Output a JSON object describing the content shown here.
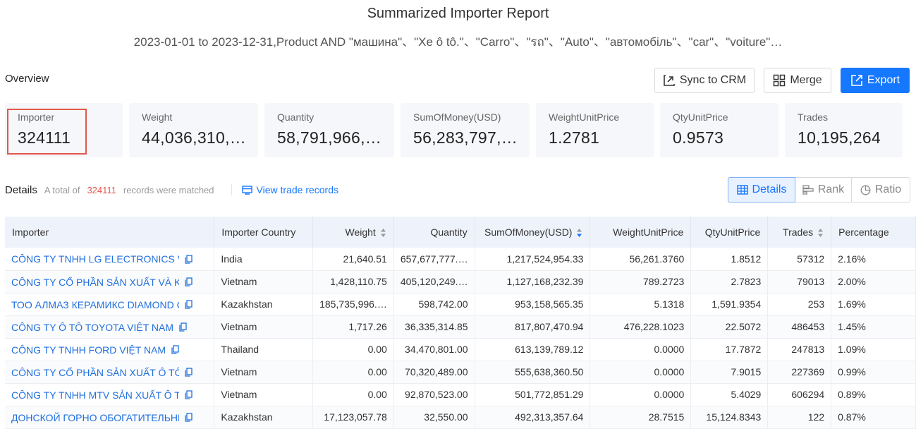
{
  "header": {
    "title": "Summarized Importer Report",
    "subtitle": "2023-01-01 to 2023-12-31,Product AND \"машина\"、\"Xe ô tô.\"、\"Carro\"、\"รถ\"、\"Auto\"、\"автомобіль\"、\"car\"、\"voiture\"…"
  },
  "overview": {
    "label": "Overview",
    "buttons": {
      "sync": "Sync to CRM",
      "merge": "Merge",
      "export": "Export"
    },
    "cards": [
      {
        "label": "Importer",
        "value": "324111"
      },
      {
        "label": "Weight",
        "value": "44,036,310,…"
      },
      {
        "label": "Quantity",
        "value": "58,791,966,…"
      },
      {
        "label": "SumOfMoney(USD)",
        "value": "56,283,797,…"
      },
      {
        "label": "WeightUnitPrice",
        "value": "1.2781"
      },
      {
        "label": "QtyUnitPrice",
        "value": "0.9573"
      },
      {
        "label": "Trades",
        "value": "10,195,264"
      }
    ]
  },
  "details": {
    "label": "Details",
    "meta_prefix": "A total of",
    "count": "324111",
    "meta_suffix": "records were matched",
    "view_link": "View trade records",
    "tabs": {
      "details": "Details",
      "rank": "Rank",
      "ratio": "Ratio"
    }
  },
  "table": {
    "columns": [
      "Importer",
      "Importer Country",
      "Weight",
      "Quantity",
      "SumOfMoney(USD)",
      "WeightUnitPrice",
      "QtyUnitPrice",
      "Trades",
      "Percentage"
    ],
    "rows": [
      [
        "CÔNG TY TNHH LG ELECTRONICS VIỆT NAM",
        "India",
        "21,640.51",
        "657,677,777.…",
        "1,217,524,954.33",
        "56,261.3760",
        "1.8512",
        "57312",
        "2.16%"
      ],
      [
        "CÔNG TY CỔ PHẦN SẢN XUẤT VÀ KINH DOANH",
        "Vietnam",
        "1,428,110.75",
        "405,120,249.…",
        "1,127,168,232.39",
        "789.2723",
        "2.7823",
        "79013",
        "2.00%"
      ],
      [
        "ТОО АЛМАЗ КЕРАМИКС DIAMOND CERAMICS",
        "Kazakhstan",
        "185,735,996.…",
        "598,742.00",
        "953,158,565.35",
        "5.1318",
        "1,591.9354",
        "253",
        "1.69%"
      ],
      [
        "CÔNG TY Ô TÔ TOYOTA VIỆT NAM",
        "Vietnam",
        "1,717.26",
        "36,335,314.85",
        "817,807,470.94",
        "476,228.1023",
        "22.5072",
        "486453",
        "1.45%"
      ],
      [
        "CÔNG TY TNHH FORD VIỆT NAM",
        "Thailand",
        "0.00",
        "34,470,801.00",
        "613,139,789.12",
        "0.0000",
        "17.7872",
        "247813",
        "1.09%"
      ],
      [
        "CÔNG TY CỔ PHẦN SẢN XUẤT Ô TÔ HYUNDAI",
        "Vietnam",
        "0.00",
        "70,320,489.00",
        "555,638,360.50",
        "0.0000",
        "7.9015",
        "227369",
        "0.99%"
      ],
      [
        "CÔNG TY TNHH MTV SẢN XUẤT Ô TÔ TRƯỜNG HẢI",
        "Vietnam",
        "0.00",
        "92,870,523.00",
        "501,772,851.29",
        "0.0000",
        "5.4029",
        "606294",
        "0.89%"
      ],
      [
        "ДОНСКОЙ ГОРНО ОБОГАТИТЕЛЬНЫЙ КОМБИНАТ",
        "Kazakhstan",
        "17,123,057.78",
        "32,550.00",
        "492,313,357.64",
        "28.7515",
        "15,124.8343",
        "122",
        "0.87%"
      ]
    ]
  }
}
